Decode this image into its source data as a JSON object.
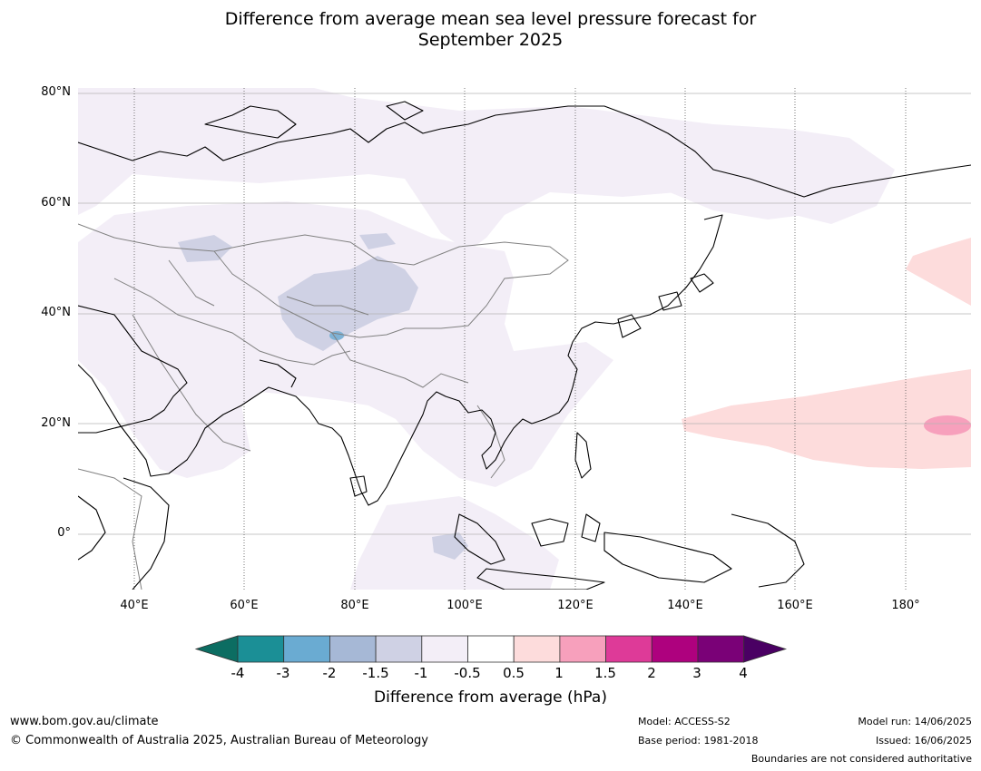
{
  "title": {
    "line1": "Difference from average mean sea level pressure forecast for",
    "line2": "September 2025"
  },
  "map": {
    "lat_labels": [
      "80°N",
      "60°N",
      "40°N",
      "20°N",
      "0°"
    ],
    "lon_labels": [
      "40°E",
      "60°E",
      "80°E",
      "100°E",
      "120°E",
      "140°E",
      "160°E",
      "180°"
    ],
    "colors": {
      "land_outline": "#000000",
      "borders": "#808080",
      "anomaly_neg_0_5_to_1": "#f3eef7",
      "anomaly_neg_1_to_1_5": "#cfd1e4",
      "anomaly_pos_0_5_to_1": "#fddcdc",
      "anomaly_pos_1_to_1_5": "#f7a0bc"
    }
  },
  "colorbar": {
    "labels": [
      "-4",
      "-3",
      "-2",
      "-1.5",
      "-1",
      "-0.5",
      "0.5",
      "1",
      "1.5",
      "2",
      "3",
      "4"
    ],
    "colors": [
      "#1b8f96",
      "#6aabd2",
      "#a6b8d6",
      "#cfd1e4",
      "#f3eef7",
      "#ffffff",
      "#fddcdc",
      "#f7a0bc",
      "#de3a98",
      "#ae017e",
      "#7a0177"
    ],
    "low_extend_color": "#0c6d62",
    "high_extend_color": "#4a0063",
    "axis_label": "Difference from average (hPa)"
  },
  "footer": {
    "website": "www.bom.gov.au/climate",
    "copyright": "© Commonwealth of Australia 2025, Australian Bureau of Meteorology",
    "model": "Model: ACCESS-S2",
    "base_period": "Base period: 1981-2018",
    "model_run": "Model run: 14/06/2025",
    "issued": "Issued: 16/06/2025",
    "disclaimer": "Boundaries are not considered authoritative"
  }
}
